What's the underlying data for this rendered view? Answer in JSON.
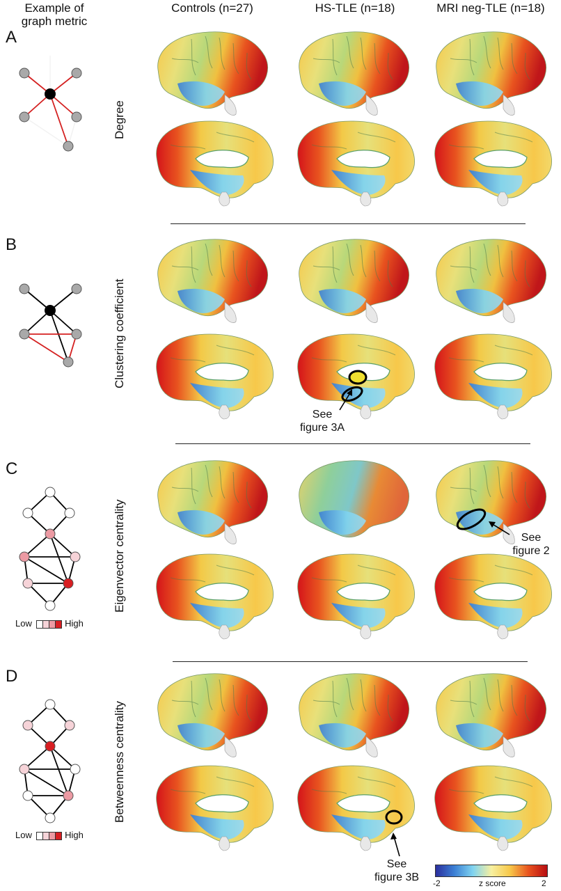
{
  "header": {
    "left_line1": "Example of",
    "left_line2": "graph metric",
    "columns": [
      "Controls (n=27)",
      "HS-TLE (n=18)",
      "MRI neg-TLE (n=18)"
    ]
  },
  "panels": [
    {
      "letter": "A",
      "metric": "Degree"
    },
    {
      "letter": "B",
      "metric": "Clustering coefficient"
    },
    {
      "letter": "C",
      "metric": "Eigenvector centrality"
    },
    {
      "letter": "D",
      "metric": "Betweenness centrality"
    }
  ],
  "annotations": {
    "b_see": "See",
    "b_fig": "figure 3A",
    "c_see": "See",
    "c_fig": "figure 2",
    "d_see": "See",
    "d_fig": "figure 3B"
  },
  "scale_legend": {
    "low": "Low",
    "high": "High"
  },
  "colorbar": {
    "min": "-2",
    "max": "2",
    "label": "z score",
    "colors": [
      "#2b2f9e",
      "#3b7fd4",
      "#7fd3f0",
      "#f7f0a0",
      "#f7c84a",
      "#e8531f",
      "#b80d12"
    ]
  },
  "colors": {
    "red_edge": "#d42020",
    "node_gray": "#a9a9a9",
    "hub": "#000000",
    "high": "#d81e22",
    "mid": "#ec9aa3",
    "low": "#f6d3d8"
  }
}
